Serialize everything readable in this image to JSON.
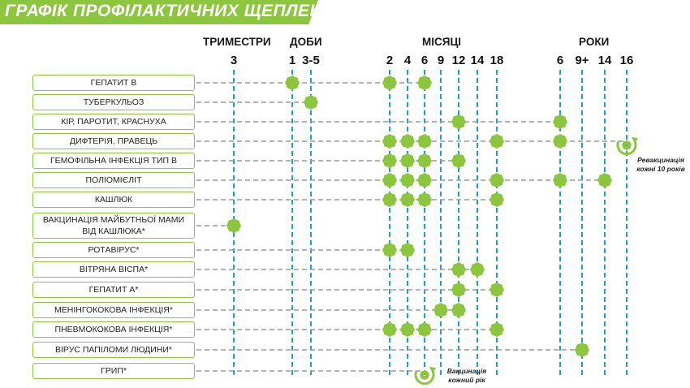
{
  "title": "ГРАФІК ПРОФІЛАКТИЧНИХ ЩЕПЛЕНЬ",
  "colors": {
    "accent": "#8cc63f",
    "timeline": "#1aa0d6",
    "connector": "#9a9a9a"
  },
  "groups": [
    {
      "label": "ТРИМЕСТРИ",
      "id": "trimesters"
    },
    {
      "label": "ДОБИ",
      "id": "days"
    },
    {
      "label": "МІСЯЦІ",
      "id": "months"
    },
    {
      "label": "РОКИ",
      "id": "years"
    }
  ],
  "timepoints": [
    "3",
    "1",
    "3-5",
    "2",
    "4",
    "6",
    "9",
    "12",
    "14",
    "18",
    "6",
    "9+",
    "14",
    "16"
  ],
  "vaccines": [
    {
      "label": "ГЕПАТИТ В",
      "marks": [
        1,
        3,
        5
      ]
    },
    {
      "label": "ТУБЕРКУЛЬОЗ",
      "marks": [
        2
      ]
    },
    {
      "label": "КІР, ПАРОТИТ, КРАСНУХА",
      "marks": [
        7,
        10
      ]
    },
    {
      "label": "ДИФТЕРІЯ, ПРАВЕЦЬ",
      "marks": [
        3,
        4,
        5,
        9,
        10
      ],
      "recurring_at": 13
    },
    {
      "label": "ГЕМОФІЛЬНА ІНФЕКЦІЯ ТИП В",
      "marks": [
        3,
        4,
        5,
        7
      ]
    },
    {
      "label": "ПОЛІОМІЄЛІТ",
      "marks": [
        3,
        4,
        5,
        9,
        10,
        12
      ]
    },
    {
      "label": "КАШЛЮК",
      "marks": [
        3,
        4,
        5,
        9
      ]
    },
    {
      "label": "ВАКЦИНАЦІЯ МАЙБУТНЬОЇ МАМИ ВІД КАШЛЮКА*",
      "marks": [
        0
      ]
    },
    {
      "label": "РОТАВІРУС*",
      "marks": [
        3,
        4
      ]
    },
    {
      "label": "ВІТРЯНА ВІСПА*",
      "marks": [
        7,
        8
      ]
    },
    {
      "label": "ГЕПАТИТ А*",
      "marks": [
        7,
        9
      ]
    },
    {
      "label": "МЕНІНГОКОКОВА ІНФЕКЦІЯ*",
      "marks": [
        6,
        7
      ]
    },
    {
      "label": "ПНЕВМОКОКОВА ІНФЕКЦІЯ*",
      "marks": [
        3,
        4,
        5,
        9
      ]
    },
    {
      "label": "ВІРУС ПАПІЛОМИ ЛЮДИНИ*",
      "marks": [
        11
      ]
    },
    {
      "label": "ГРИП*",
      "marks": [],
      "recurring_at": 5
    }
  ],
  "notes": {
    "revaccination": "Ревакцинація кожні 10 років",
    "flu": "Вакцинація кожний рік"
  }
}
